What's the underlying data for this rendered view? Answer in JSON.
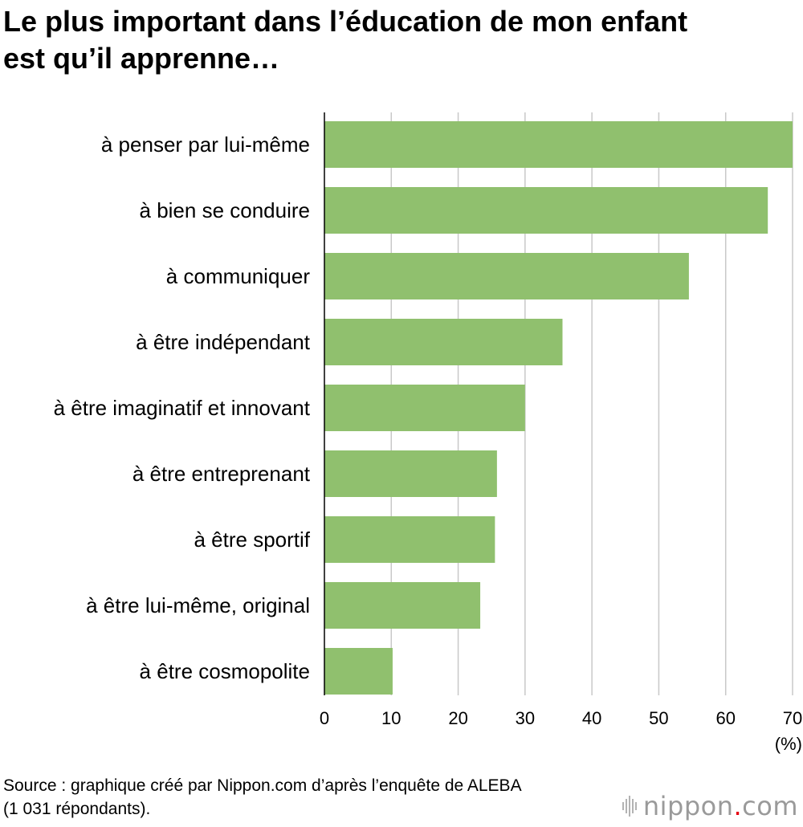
{
  "title_lines": [
    "Le plus important dans l’éducation de mon enfant",
    "est qu’il apprenne…"
  ],
  "source_lines": [
    "Source : graphique créé par Nippon.com d’après l’enquête de ALEBA",
    "(1 031 répondants)."
  ],
  "logo": {
    "name": "nippon",
    "dot": ".",
    "suffix": "com"
  },
  "colors": {
    "bar": "#90c06e",
    "grid": "#c8c8c8",
    "axis": "#000000"
  },
  "chart_data": {
    "type": "bar",
    "orientation": "horizontal",
    "categories": [
      "à penser par lui-même",
      "à bien se conduire",
      "à communiquer",
      "à être indépendant",
      "à être imaginatif et innovant",
      "à être entreprenant",
      "à être sportif",
      "à être lui-même, original",
      "à être cosmopolite"
    ],
    "values": [
      70,
      66.3,
      54.5,
      35.6,
      30.0,
      25.8,
      25.5,
      23.3,
      10.2
    ],
    "xlim": [
      0,
      70
    ],
    "xticks": [
      "0",
      "10",
      "20",
      "30",
      "40",
      "50",
      "60",
      "70"
    ],
    "xunit": "(%)",
    "grid": true
  }
}
